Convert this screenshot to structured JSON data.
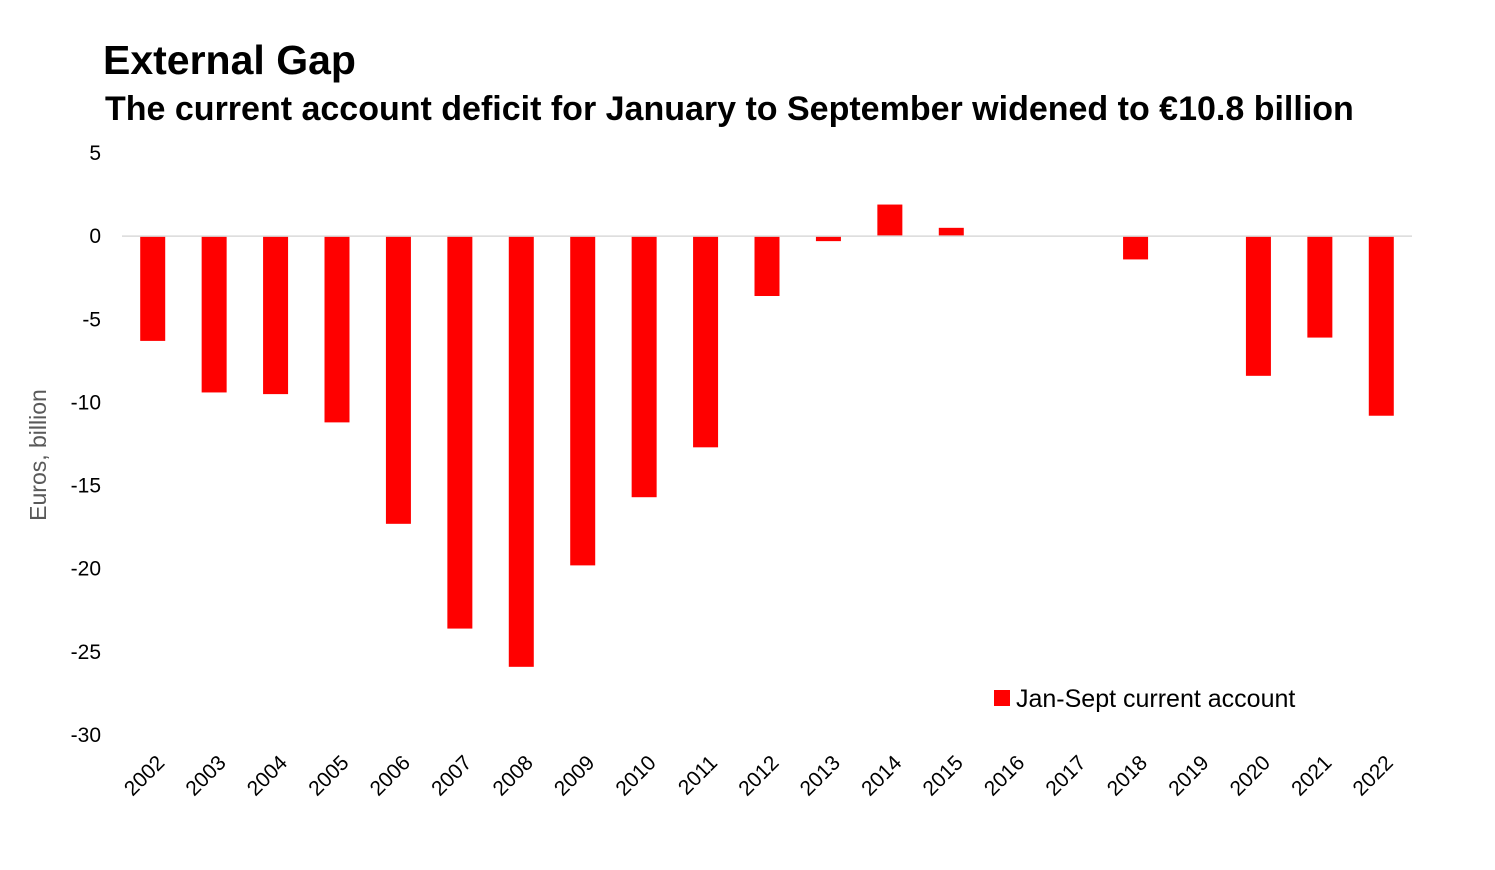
{
  "chart_data": {
    "type": "bar",
    "title": "External Gap",
    "subtitle": "The current account deficit for January to September widened to €10.8 billion",
    "xlabel": "",
    "ylabel": "Euros, billion",
    "ylim": [
      -30,
      5
    ],
    "yticks": [
      5,
      0,
      -5,
      -10,
      -15,
      -20,
      -25,
      -30
    ],
    "categories": [
      "2002",
      "2003",
      "2004",
      "2005",
      "2006",
      "2007",
      "2008",
      "2009",
      "2010",
      "2011",
      "2012",
      "2013",
      "2014",
      "2015",
      "2016",
      "2017",
      "2018",
      "2019",
      "2020",
      "2021",
      "2022"
    ],
    "series": [
      {
        "name": "Jan-Sept current account",
        "color": "#ff0000",
        "values": [
          -6.3,
          -9.4,
          -9.5,
          -11.2,
          -17.3,
          -23.6,
          -25.9,
          -19.8,
          -15.7,
          -12.7,
          -3.6,
          -0.3,
          1.9,
          0.5,
          0,
          0,
          -1.4,
          0,
          -8.4,
          -6.1,
          -10.8
        ]
      }
    ],
    "grid": false,
    "legend_position": "bottom-right"
  }
}
